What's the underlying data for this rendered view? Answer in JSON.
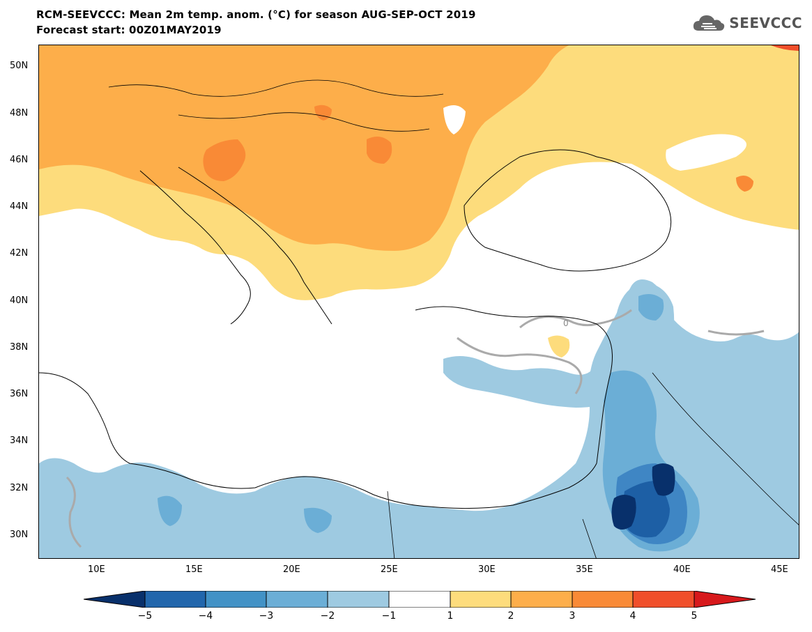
{
  "header": {
    "title_line1": "RCM-SEEVCCC: Mean 2m temp. anom. (°C) for season AUG-SEP-OCT 2019",
    "title_line2": "Forecast start: 00Z01MAY2019",
    "logo_text": "SEEVCCC",
    "logo_icon": "cloud-logo-icon"
  },
  "map": {
    "lat_labels": [
      "50N",
      "48N",
      "46N",
      "44N",
      "42N",
      "40N",
      "38N",
      "36N",
      "34N",
      "32N",
      "30N"
    ],
    "lon_labels": [
      "10E",
      "15E",
      "20E",
      "25E",
      "30E",
      "35E",
      "40E",
      "45E"
    ],
    "contour_label": "0",
    "colors": {
      "warm1": "#fddc7c",
      "warm2": "#fdae4a",
      "warm3": "#f98a36",
      "warm4": "#f04e2a",
      "cool1": "#9ecae1",
      "cool2": "#6baed6",
      "cool3": "#3f86c4",
      "cool4": "#1d5fa5",
      "cool5": "#08306b",
      "land_border": "#000000",
      "zero_contour": "#aaaaaa"
    }
  },
  "colorbar": {
    "labels": [
      "−5",
      "−4",
      "−3",
      "−2",
      "−1",
      "1",
      "2",
      "3",
      "4",
      "5"
    ],
    "colors": [
      "#08306b",
      "#2166ac",
      "#4292c6",
      "#6baed6",
      "#9ecae1",
      "#ffffff",
      "#fddc7c",
      "#fdae4a",
      "#f98a36",
      "#f04e2a",
      "#d7191c"
    ]
  }
}
